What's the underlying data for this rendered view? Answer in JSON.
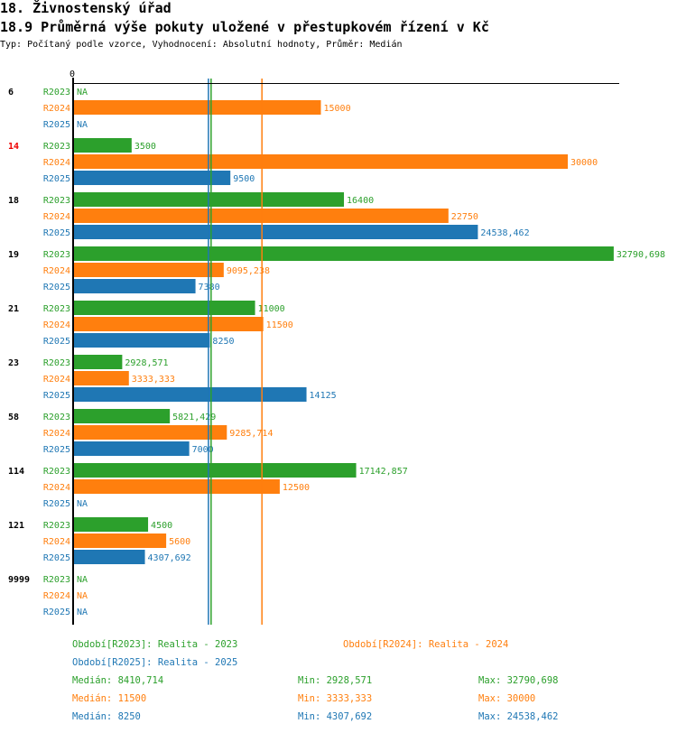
{
  "title": "18. Živnostenský úřad",
  "subtitle": "18.9 Průměrná výše pokuty uložené v přestupkovém řízení v Kč",
  "type_line": "Typ: Počítaný podle vzorce, Vyhodnocení: Absolutní hodnoty, Průměr: Medián",
  "colors": {
    "R2023": "#2ca02c",
    "R2024": "#ff7f0e",
    "R2025": "#1f77b4"
  },
  "chart_data": {
    "type": "bar",
    "orientation": "horizontal",
    "xlim": [
      0,
      33000
    ],
    "x_tick": "0",
    "series_names": [
      "R2023",
      "R2024",
      "R2025"
    ],
    "groups": [
      {
        "label": "6",
        "highlight": false,
        "values": [
          null,
          15000,
          null
        ],
        "labels": [
          "NA",
          "15000",
          "NA"
        ]
      },
      {
        "label": "14",
        "highlight": true,
        "values": [
          3500,
          30000,
          9500
        ],
        "labels": [
          "3500",
          "30000",
          "9500"
        ]
      },
      {
        "label": "18",
        "highlight": false,
        "values": [
          16400,
          22750,
          24538.462
        ],
        "labels": [
          "16400",
          "22750",
          "24538,462"
        ]
      },
      {
        "label": "19",
        "highlight": false,
        "values": [
          32790.698,
          9095.238,
          7380
        ],
        "labels": [
          "32790,698",
          "9095,238",
          "7380"
        ]
      },
      {
        "label": "21",
        "highlight": false,
        "values": [
          11000,
          11500,
          8250
        ],
        "labels": [
          "11000",
          "11500",
          "8250"
        ]
      },
      {
        "label": "23",
        "highlight": false,
        "values": [
          2928.571,
          3333.333,
          14125
        ],
        "labels": [
          "2928,571",
          "3333,333",
          "14125"
        ]
      },
      {
        "label": "58",
        "highlight": false,
        "values": [
          5821.429,
          9285.714,
          7000
        ],
        "labels": [
          "5821,429",
          "9285,714",
          "7000"
        ]
      },
      {
        "label": "114",
        "highlight": false,
        "values": [
          17142.857,
          12500,
          null
        ],
        "labels": [
          "17142,857",
          "12500",
          "NA"
        ]
      },
      {
        "label": "121",
        "highlight": false,
        "values": [
          4500,
          5600,
          4307.692
        ],
        "labels": [
          "4500",
          "5600",
          "4307,692"
        ]
      },
      {
        "label": "9999",
        "highlight": false,
        "values": [
          null,
          null,
          null
        ],
        "labels": [
          "NA",
          "NA",
          "NA"
        ]
      }
    ],
    "medians": {
      "R2023": 8410.714,
      "R2024": 11500,
      "R2025": 8250
    }
  },
  "legend": {
    "p2023": "Období[R2023]: Realita - 2023",
    "p2024": "Období[R2024]: Realita - 2024",
    "p2025": "Období[R2025]: Realita - 2025",
    "stats": [
      {
        "median": "Medián: 8410,714",
        "min": "Min: 2928,571",
        "max": "Max: 32790,698"
      },
      {
        "median": "Medián: 11500",
        "min": "Min: 3333,333",
        "max": "Max: 30000"
      },
      {
        "median": "Medián: 8250",
        "min": "Min: 4307,692",
        "max": "Max: 24538,462"
      }
    ]
  }
}
